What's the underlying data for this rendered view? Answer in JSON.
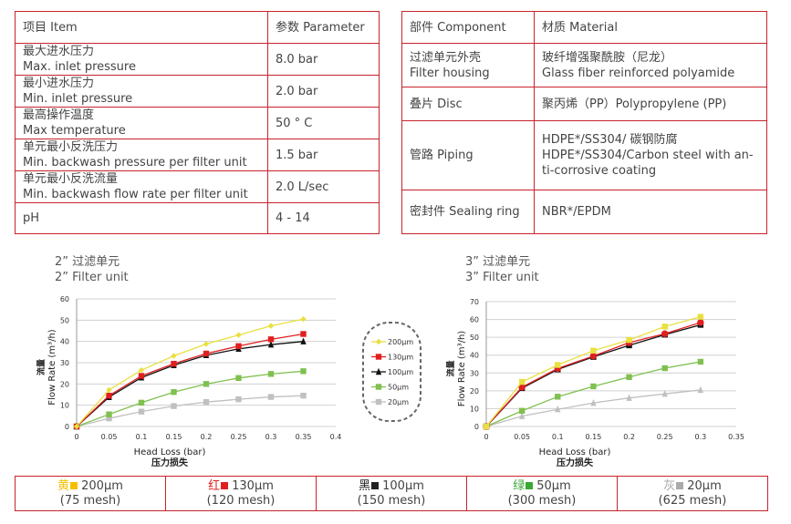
{
  "params_table": {
    "header": [
      "项目 Item",
      "参数 Parameter"
    ],
    "rows": [
      {
        "cn": "最大进水压力",
        "en": "Max. inlet pressure",
        "value": "8.0 bar"
      },
      {
        "cn": "最小进水压力",
        "en": "Min. inlet pressure",
        "value": "2.0 bar"
      },
      {
        "cn": "最高操作温度",
        "en": "Max temperature",
        "value": "50 ° C"
      },
      {
        "cn": "单元最小反洗压力",
        "en": "Min. backwash pressure per filter unit",
        "value": "1.5 bar"
      },
      {
        "cn": "单元最小反洗流量",
        "en": "Min. backwash flow rate per filter unit",
        "value": "2.0 L/sec"
      },
      {
        "cn": "pH",
        "en": "",
        "value": "4 - 14"
      }
    ]
  },
  "materials_table": {
    "header": [
      "部件 Component",
      "材质 Material"
    ],
    "rows": [
      {
        "component": [
          "过滤单元外壳",
          "Filter housing"
        ],
        "material": [
          "玻纤增强聚酰胺（尼龙）",
          "Glass fiber reinforced polyamide"
        ]
      },
      {
        "component": [
          "叠片 Disc"
        ],
        "material": [
          "聚丙烯（PP）Polypropylene (PP)"
        ]
      },
      {
        "component": [
          "管路 Piping"
        ],
        "material": [
          "HDPE*/SS304/ 碳钢防腐",
          "HDPE*/SS304/Carbon steel with an-",
          "ti-corrosive coating"
        ]
      },
      {
        "component": [
          "密封件 Sealing ring"
        ],
        "material": [
          "NBR*/EPDM"
        ]
      }
    ]
  },
  "colors": {
    "yellow": "#e8e040",
    "red": "#e02020",
    "black": "#111111",
    "green": "#80c050",
    "gray": "#c0c0c0",
    "border": "#c8232c"
  },
  "chart_data": [
    {
      "type": "line",
      "title": "2” 过滤单元",
      "subtitle": "2” Filter unit",
      "xlabel": "Head Loss (bar)",
      "xlabel_cn": "压力损失",
      "ylabel": "Flow Rate (m³/h)",
      "ylabel_cn": "流量",
      "xlim": [
        0,
        0.4
      ],
      "ylim": [
        0,
        60
      ],
      "xticks": [
        0,
        0.05,
        0.1,
        0.15,
        0.2,
        0.25,
        0.3,
        0.35,
        0.4
      ],
      "yticks": [
        0,
        10,
        20,
        30,
        40,
        50,
        60
      ],
      "grid": true,
      "legend": "right",
      "x": [
        0,
        0.05,
        0.1,
        0.15,
        0.2,
        0.25,
        0.3,
        0.35
      ],
      "series": [
        {
          "name": "200μm",
          "color": "#e8e040",
          "marker": "diamond",
          "values": [
            0,
            17.2,
            26.5,
            33.2,
            38.8,
            43,
            47.3,
            50.5
          ]
        },
        {
          "name": "130μm",
          "color": "#e02020",
          "marker": "square",
          "values": [
            0,
            14.5,
            23.8,
            29.5,
            34.3,
            37.8,
            41,
            43.5
          ]
        },
        {
          "name": "100μm",
          "color": "#111111",
          "marker": "triangle",
          "values": [
            0,
            13.8,
            23,
            28.8,
            33.5,
            36.5,
            38.5,
            40
          ]
        },
        {
          "name": "50μm",
          "color": "#80c050",
          "marker": "square",
          "values": [
            0,
            5.7,
            11.2,
            16.2,
            20,
            22.8,
            24.7,
            26
          ]
        },
        {
          "name": "20μm",
          "color": "#c0c0c0",
          "marker": "square",
          "values": [
            0,
            3.8,
            7,
            9.6,
            11.5,
            12.8,
            13.9,
            14.5
          ]
        }
      ]
    },
    {
      "type": "line",
      "title": "3” 过滤单元",
      "subtitle": "3” Filter unit",
      "xlabel": "Head Loss (bar)",
      "xlabel_cn": "压力损失",
      "ylabel": "Flow Rate (m³/h)",
      "ylabel_cn": "流量",
      "xlim": [
        0,
        0.35
      ],
      "ylim": [
        0,
        70
      ],
      "xticks": [
        0,
        0.05,
        0.1,
        0.15,
        0.2,
        0.25,
        0.3,
        0.35
      ],
      "yticks": [
        0,
        10,
        20,
        30,
        40,
        50,
        60,
        70
      ],
      "grid": true,
      "x": [
        0,
        0.05,
        0.1,
        0.15,
        0.2,
        0.25,
        0.3
      ],
      "series": [
        {
          "color": "#e8e040",
          "marker": "square",
          "values": [
            0,
            25,
            34.5,
            42.5,
            48.5,
            56,
            61.5
          ]
        },
        {
          "color": "#e02020",
          "marker": "circle",
          "values": [
            0,
            22,
            32.5,
            39.5,
            47,
            52,
            58.3
          ]
        },
        {
          "color": "#111111",
          "marker": "square",
          "values": [
            0,
            21.5,
            32,
            39,
            45.5,
            51.5,
            57
          ]
        },
        {
          "color": "#80c050",
          "marker": "square",
          "values": [
            0,
            8.8,
            16.7,
            22.5,
            27.7,
            32.7,
            36.3
          ]
        },
        {
          "color": "#c0c0c0",
          "marker": "triangle",
          "values": [
            0,
            5.8,
            9.6,
            13.2,
            16,
            18.3,
            20.5
          ]
        }
      ]
    }
  ],
  "mesh_legend": [
    {
      "cn": "黄",
      "size": "200μm",
      "mesh": "(75 mesh)",
      "color": "#f5c000"
    },
    {
      "cn": "红",
      "size": "130μm",
      "mesh": "(120 mesh)",
      "color": "#e02020"
    },
    {
      "cn": "黑",
      "size": "100μm",
      "mesh": "(150 mesh)",
      "color": "#222222"
    },
    {
      "cn": "绿",
      "size": "50μm",
      "mesh": "(300 mesh)",
      "color": "#3aa835"
    },
    {
      "cn": "灰",
      "size": "20μm",
      "mesh": "(625 mesh)",
      "color": "#aaaaaa"
    }
  ]
}
